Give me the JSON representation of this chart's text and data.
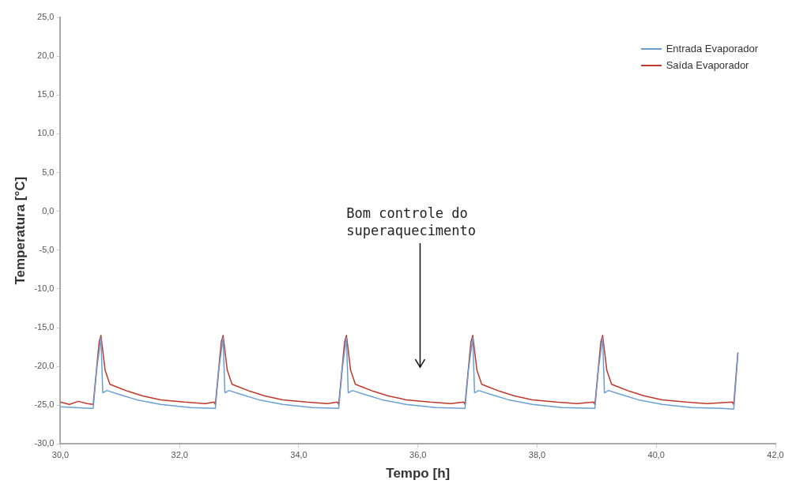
{
  "chart_data": {
    "type": "line",
    "xlabel": "Tempo [h]",
    "ylabel": "Temperatura [°C]",
    "xlim": [
      30,
      42
    ],
    "xticks": [
      {
        "value": 30,
        "label": "30,0"
      },
      {
        "value": 32,
        "label": "32,0"
      },
      {
        "value": 34,
        "label": "34,0"
      },
      {
        "value": 36,
        "label": "36,0"
      },
      {
        "value": 38,
        "label": "38,0"
      },
      {
        "value": 40,
        "label": "40,0"
      },
      {
        "value": 42,
        "label": "42,0"
      }
    ],
    "ylim": [
      -30,
      25
    ],
    "yticks": [
      {
        "value": -30,
        "label": "-30,0"
      },
      {
        "value": -25,
        "label": "-25,0"
      },
      {
        "value": -20,
        "label": "-20,0"
      },
      {
        "value": -15,
        "label": "-15,0"
      },
      {
        "value": -10,
        "label": "-10,0"
      },
      {
        "value": -5,
        "label": "-5,0"
      },
      {
        "value": 0,
        "label": "0,0"
      },
      {
        "value": 5,
        "label": "5,0"
      },
      {
        "value": 10,
        "label": "10,0"
      },
      {
        "value": 15,
        "label": "15,0"
      },
      {
        "value": 20,
        "label": "20,0"
      },
      {
        "value": 25,
        "label": "25,0"
      }
    ],
    "grid": false,
    "legend": "top right",
    "marker": "none",
    "line_style": "solid",
    "annotations": [
      "Bom controle do superaquecimento"
    ],
    "series": [
      {
        "name": "Entrada Evaporador",
        "color": "#6a9fd4",
        "x": [
          30.0,
          30.5,
          30.55,
          30.61,
          30.68,
          30.71,
          30.78,
          30.98,
          31.28,
          31.68,
          32.18,
          32.6,
          32.66,
          32.73,
          32.76,
          32.83,
          33.03,
          33.33,
          33.73,
          34.23,
          34.67,
          34.73,
          34.8,
          34.83,
          34.9,
          35.1,
          35.4,
          35.8,
          36.3,
          36.79,
          36.85,
          36.92,
          36.95,
          37.02,
          37.22,
          37.52,
          37.92,
          38.42,
          38.97,
          39.03,
          39.1,
          39.13,
          39.2,
          39.4,
          39.7,
          40.1,
          40.6,
          41.1,
          41.3,
          41.34,
          41.37
        ],
        "values": [
          -25.2,
          -25.4,
          -25.4,
          -20.3,
          -16.3,
          -23.4,
          -23.1,
          -23.6,
          -24.3,
          -24.9,
          -25.3,
          -25.4,
          -20.3,
          -16.3,
          -23.4,
          -23.1,
          -23.6,
          -24.3,
          -24.9,
          -25.3,
          -25.4,
          -20.3,
          -16.3,
          -23.4,
          -23.1,
          -23.6,
          -24.3,
          -24.9,
          -25.3,
          -25.4,
          -20.3,
          -16.3,
          -23.4,
          -23.1,
          -23.6,
          -24.3,
          -24.9,
          -25.3,
          -25.4,
          -20.3,
          -16.3,
          -23.4,
          -23.1,
          -23.6,
          -24.3,
          -24.9,
          -25.3,
          -25.4,
          -25.5,
          -21.5,
          -18.3
        ]
      },
      {
        "name": "Saída Evaporador",
        "color": "#c0392b",
        "x": [
          30.0,
          30.15,
          30.3,
          30.45,
          30.55,
          30.61,
          30.65,
          30.68,
          30.75,
          30.83,
          30.93,
          31.13,
          31.38,
          31.68,
          32.08,
          32.43,
          32.58,
          32.6,
          32.66,
          32.7,
          32.73,
          32.8,
          32.88,
          32.98,
          33.18,
          33.43,
          33.73,
          34.13,
          34.48,
          34.65,
          34.67,
          34.73,
          34.77,
          34.8,
          34.87,
          34.95,
          35.05,
          35.25,
          35.5,
          35.8,
          36.2,
          36.55,
          36.77,
          36.79,
          36.85,
          36.89,
          36.92,
          36.99,
          37.07,
          37.17,
          37.37,
          37.62,
          37.92,
          38.32,
          38.67,
          38.95,
          38.97,
          39.03,
          39.07,
          39.1,
          39.17,
          39.25,
          39.35,
          39.55,
          39.8,
          40.1,
          40.5,
          40.85,
          41.28,
          41.3,
          41.34,
          41.37
        ],
        "values": [
          -24.6,
          -24.9,
          -24.5,
          -24.8,
          -24.9,
          -20.0,
          -16.8,
          -16.0,
          -20.5,
          -22.3,
          -22.6,
          -23.2,
          -23.8,
          -24.3,
          -24.6,
          -24.8,
          -24.6,
          -24.9,
          -20.0,
          -16.8,
          -16.0,
          -20.5,
          -22.3,
          -22.6,
          -23.2,
          -23.8,
          -24.3,
          -24.6,
          -24.8,
          -24.6,
          -24.9,
          -20.0,
          -16.8,
          -16.0,
          -20.5,
          -22.3,
          -22.6,
          -23.2,
          -23.8,
          -24.3,
          -24.6,
          -24.8,
          -24.6,
          -24.9,
          -20.0,
          -16.8,
          -16.0,
          -20.5,
          -22.3,
          -22.6,
          -23.2,
          -23.8,
          -24.3,
          -24.6,
          -24.8,
          -24.6,
          -24.9,
          -20.0,
          -16.8,
          -16.0,
          -20.5,
          -22.3,
          -22.6,
          -23.2,
          -23.8,
          -24.3,
          -24.6,
          -24.8,
          -24.6,
          -24.9,
          -21.0,
          -18.2
        ]
      }
    ]
  }
}
